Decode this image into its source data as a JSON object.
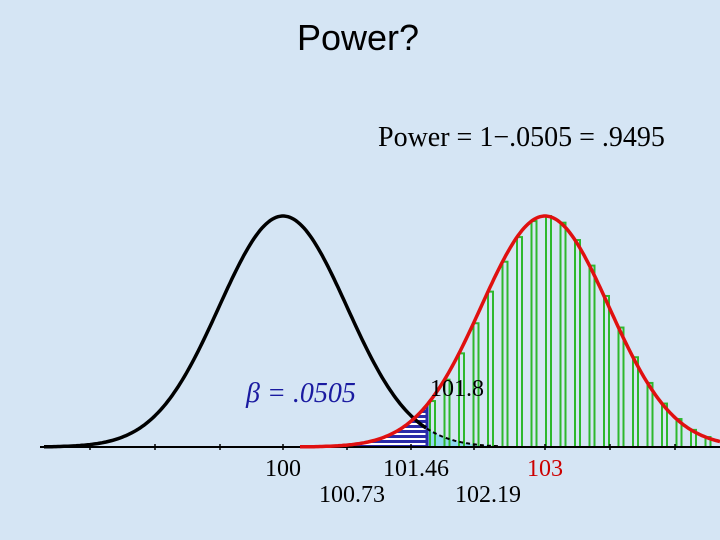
{
  "slide": {
    "title": "Power?",
    "formula": "Power = 1−.0505 = .9495",
    "beta_label": "β = .0505",
    "critical_label": "101.8",
    "axis_labels": {
      "mean_null": "100",
      "one_sd": "100.73",
      "two_sd": "101.46",
      "three_sd": "102.19",
      "mean_alt": "103"
    }
  }
}
